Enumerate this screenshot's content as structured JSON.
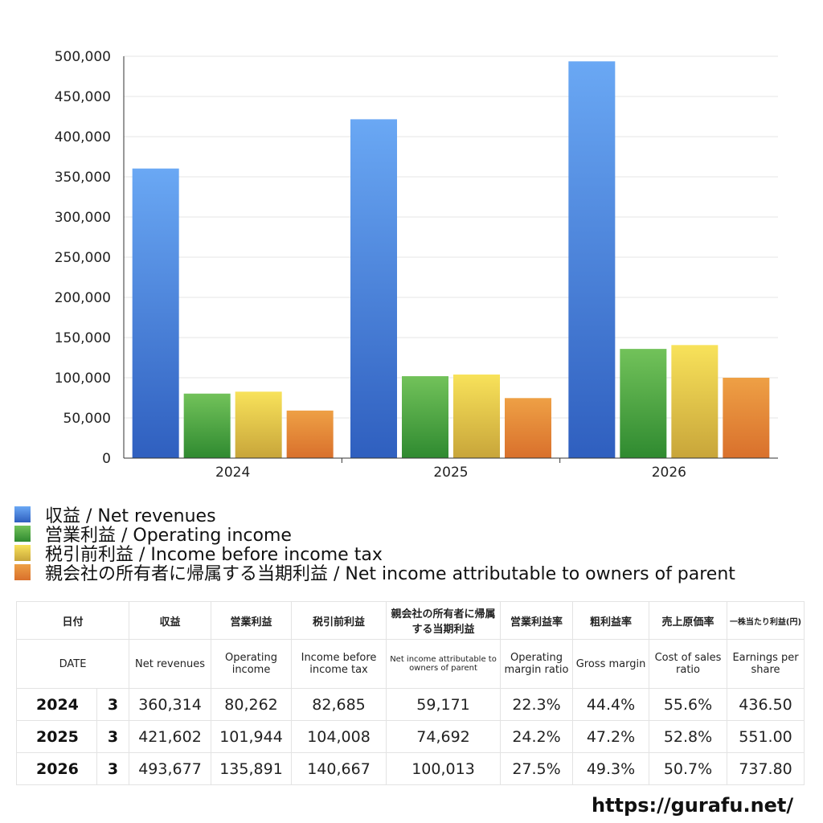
{
  "chart_data": {
    "type": "bar",
    "categories": [
      "2024",
      "2025",
      "2026"
    ],
    "series": [
      {
        "name": "収益 / Net revenues",
        "values": [
          360314,
          421602,
          493677
        ],
        "color": "#4a86e0"
      },
      {
        "name": "営業利益 / Operating income",
        "values": [
          80262,
          101944,
          135891
        ],
        "color": "#4a9e3a"
      },
      {
        "name": "税引前利益 / Income before income tax",
        "values": [
          82685,
          104008,
          140667
        ],
        "color": "#e8cc45"
      },
      {
        "name": "親会社の所有者に帰属する当期利益 / Net income attributable to owners of parent",
        "values": [
          59171,
          74692,
          100013
        ],
        "color": "#e5873a"
      }
    ],
    "ylim": [
      0,
      500000
    ],
    "yticks": [
      "0",
      "50,000",
      "100,000",
      "150,000",
      "200,000",
      "250,000",
      "300,000",
      "350,000",
      "400,000",
      "450,000",
      "500,000"
    ],
    "grid": true,
    "legend_position": "bottom"
  },
  "table": {
    "headers_jp": [
      "日付",
      "収益",
      "営業利益",
      "税引前利益",
      "親会社の所有者に帰属する当期利益",
      "営業利益率",
      "粗利益率",
      "売上原価率",
      "一株当たり利益(円)"
    ],
    "headers_en": [
      "DATE",
      "Net revenues",
      "Operating income",
      "Income before income tax",
      "Net income attributable to owners of parent",
      "Operating margin ratio",
      "Gross margin",
      "Cost of sales ratio",
      "Earnings per share"
    ],
    "rows": [
      {
        "year": "2024",
        "month": "3",
        "values": [
          "360,314",
          "80,262",
          "82,685",
          "59,171",
          "22.3%",
          "44.4%",
          "55.6%",
          "436.50"
        ]
      },
      {
        "year": "2025",
        "month": "3",
        "values": [
          "421,602",
          "101,944",
          "104,008",
          "74,692",
          "24.2%",
          "47.2%",
          "52.8%",
          "551.00"
        ]
      },
      {
        "year": "2026",
        "month": "3",
        "values": [
          "493,677",
          "135,891",
          "140,667",
          "100,013",
          "27.5%",
          "49.3%",
          "50.7%",
          "737.80"
        ]
      }
    ]
  },
  "footer": {
    "url": "https://gurafu.net/"
  }
}
